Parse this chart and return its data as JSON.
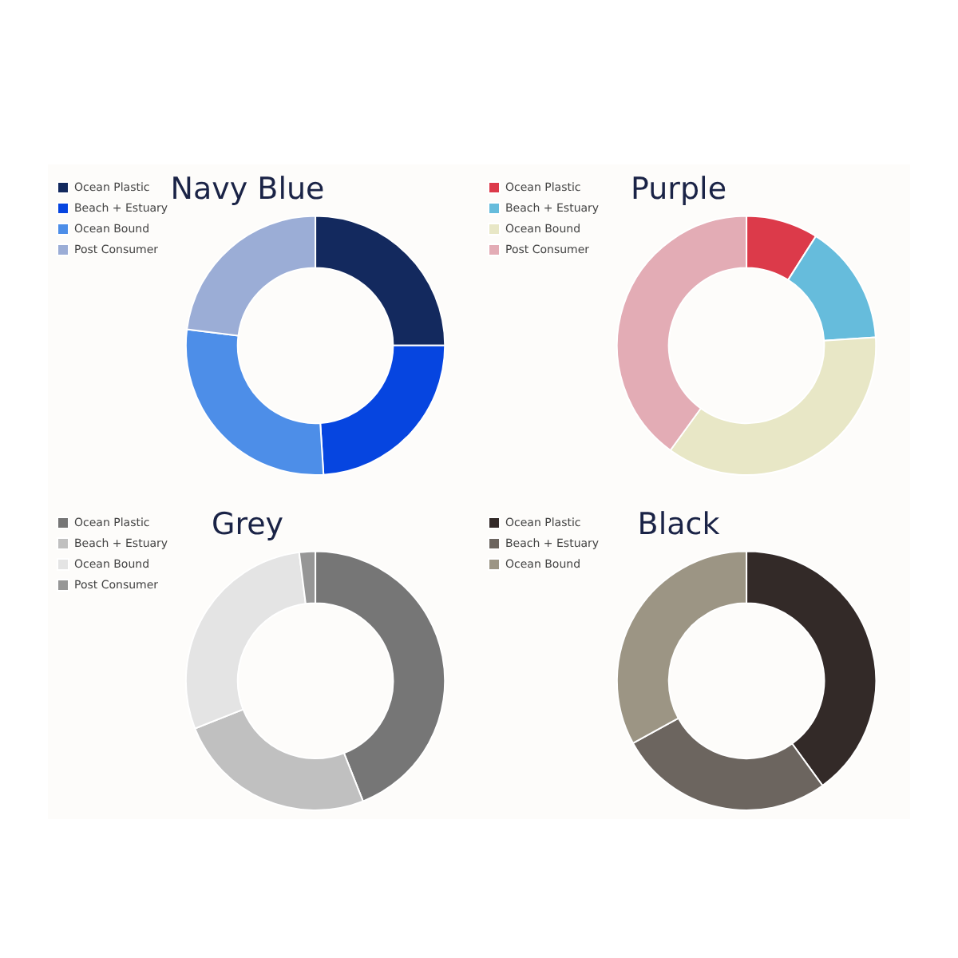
{
  "chart_data": [
    {
      "type": "donut",
      "title": "Navy Blue",
      "categories": [
        "Ocean Plastic",
        "Beach + Estuary",
        "Ocean Bound",
        "Post Consumer"
      ],
      "values": [
        25,
        24,
        28,
        23
      ],
      "colors": [
        "#13295e",
        "#0645e0",
        "#4d8ee8",
        "#9badd6"
      ],
      "legend": "top left"
    },
    {
      "type": "donut",
      "title": "Purple",
      "categories": [
        "Ocean Plastic",
        "Beach + Estuary",
        "Ocean Bound",
        "Post Consumer"
      ],
      "values": [
        9,
        15,
        36,
        40
      ],
      "colors": [
        "#dc3a4a",
        "#66bcdc",
        "#e8e7c6",
        "#e3acb5"
      ],
      "legend": "top left"
    },
    {
      "type": "donut",
      "title": "Grey",
      "categories": [
        "Ocean Plastic",
        "Beach + Estuary",
        "Ocean Bound",
        "Post Consumer"
      ],
      "values": [
        44,
        25,
        29,
        2
      ],
      "colors": [
        "#767676",
        "#c0c0c0",
        "#e4e4e4",
        "#969696"
      ],
      "legend": "top left"
    },
    {
      "type": "donut",
      "title": "Black",
      "categories": [
        "Ocean Plastic",
        "Beach + Estuary",
        "Ocean Bound"
      ],
      "values": [
        40,
        27,
        33
      ],
      "colors": [
        "#332a28",
        "#6c655f",
        "#9c9584"
      ],
      "legend": "top left"
    }
  ]
}
